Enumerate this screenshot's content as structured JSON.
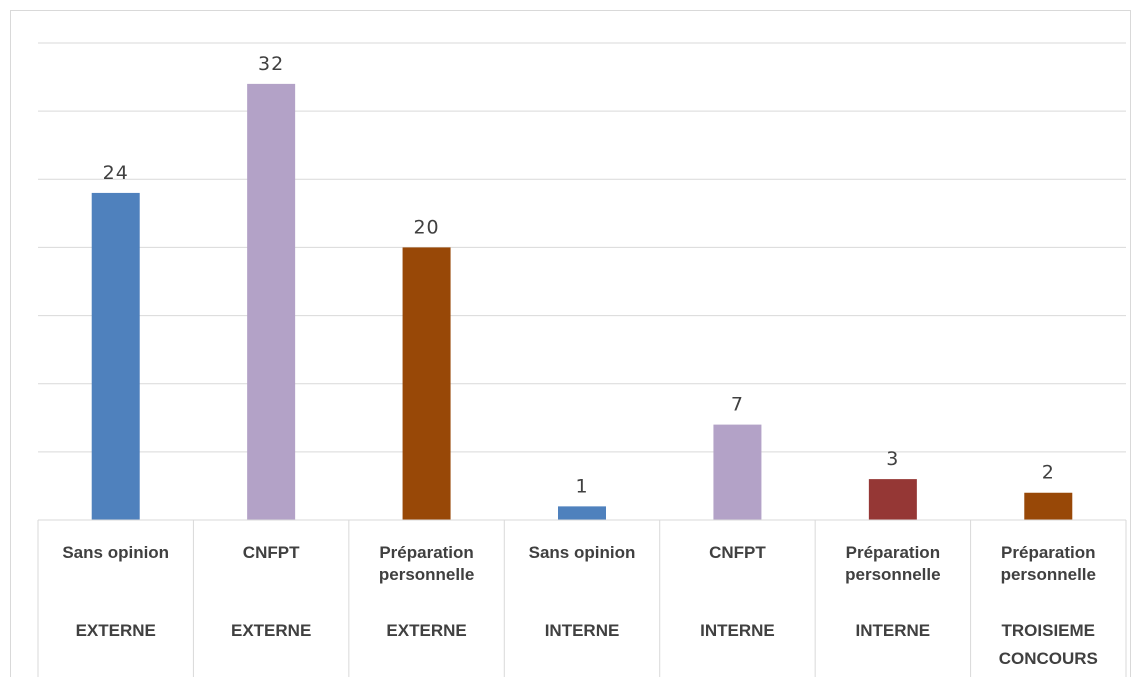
{
  "chart_data": {
    "type": "bar",
    "title": "",
    "xlabel": "",
    "ylabel": "",
    "ylim": [
      0,
      35
    ],
    "grid": true,
    "legend": "none",
    "categories": [
      {
        "sub": [
          "Sans opinion"
        ],
        "group": [
          "EXTERNE"
        ]
      },
      {
        "sub": [
          "CNFPT"
        ],
        "group": [
          "EXTERNE"
        ]
      },
      {
        "sub": [
          "Préparation",
          "personnelle"
        ],
        "group": [
          "EXTERNE"
        ]
      },
      {
        "sub": [
          "Sans opinion"
        ],
        "group": [
          "INTERNE"
        ]
      },
      {
        "sub": [
          "CNFPT"
        ],
        "group": [
          "INTERNE"
        ]
      },
      {
        "sub": [
          "Préparation",
          "personnelle"
        ],
        "group": [
          "INTERNE"
        ]
      },
      {
        "sub": [
          "Préparation",
          "personnelle"
        ],
        "group": [
          "TROISIEME",
          "CONCOURS"
        ]
      }
    ],
    "values": [
      24,
      32,
      20,
      1,
      7,
      3,
      2
    ],
    "data_labels": [
      "24",
      "32",
      "20",
      "1",
      "7",
      "3",
      "2"
    ],
    "colors": [
      "#4f81bd",
      "#b3a2c7",
      "#984807",
      "#4f81bd",
      "#b3a2c7",
      "#953735",
      "#984807"
    ],
    "grid_color": "#d9d9d9"
  }
}
